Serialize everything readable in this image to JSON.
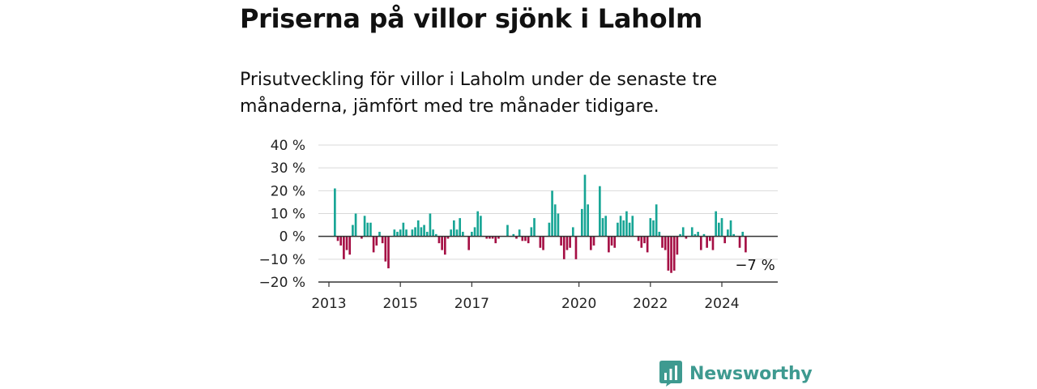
{
  "title": "Priserna på villor sjönk i Laholm",
  "subtitle": "Prisutveckling för villor i Laholm under de senaste tre månaderna, jämfört med tre månader tidigare.",
  "brand": {
    "name": "Newsworthy",
    "color": "#3e9a90"
  },
  "chart_data": {
    "type": "bar",
    "title": "",
    "xlabel": "",
    "ylabel": "",
    "ylim": [
      -20,
      40
    ],
    "yticks": [
      40,
      30,
      20,
      10,
      0,
      -10,
      -20
    ],
    "ytick_labels": [
      "40 %",
      "30 %",
      "20 %",
      "10 %",
      "0 %",
      "−10 %",
      "−20 %"
    ],
    "xticks": [
      2013,
      2015,
      2017,
      2020,
      2022,
      2024
    ],
    "xtick_labels": [
      "2013",
      "2015",
      "2017",
      "2020",
      "2022",
      "2024"
    ],
    "start": "2013-03",
    "values": [
      21,
      -2,
      -4,
      -10,
      -6,
      -8,
      5,
      10,
      0,
      -1,
      9,
      6,
      6,
      -7,
      -4,
      2,
      -3,
      -11,
      -14,
      0,
      3,
      2,
      3,
      6,
      3,
      0,
      3,
      4,
      7,
      4,
      5,
      2,
      10,
      3,
      1,
      -3,
      -6,
      -8,
      -1,
      3,
      7,
      3,
      8,
      2,
      0,
      -6,
      2,
      4,
      11,
      9,
      0,
      -1,
      -1,
      -1,
      -3,
      -1,
      0,
      0,
      5,
      0,
      1,
      -1,
      3,
      -2,
      -2,
      -3,
      4,
      8,
      0,
      -5,
      -6,
      0,
      6,
      20,
      14,
      10,
      -4,
      -10,
      -6,
      -5,
      4,
      -10,
      0,
      12,
      27,
      14,
      -6,
      -4,
      0,
      22,
      8,
      9,
      -7,
      -4,
      -5,
      6,
      9,
      7,
      11,
      6,
      9,
      0,
      -2,
      -5,
      -3,
      -7,
      8,
      7,
      14,
      2,
      -5,
      -6,
      -15,
      -16,
      -15,
      -8,
      1,
      4,
      -1,
      0,
      4,
      1,
      2,
      -6,
      1,
      -5,
      -2,
      -6,
      11,
      6,
      8,
      -3,
      3,
      7,
      1,
      0,
      -5,
      2,
      -7
    ],
    "positive_color": "#17a595",
    "negative_color": "#a50f44",
    "annotation": "−7 %",
    "grid": true,
    "legend": "none"
  }
}
